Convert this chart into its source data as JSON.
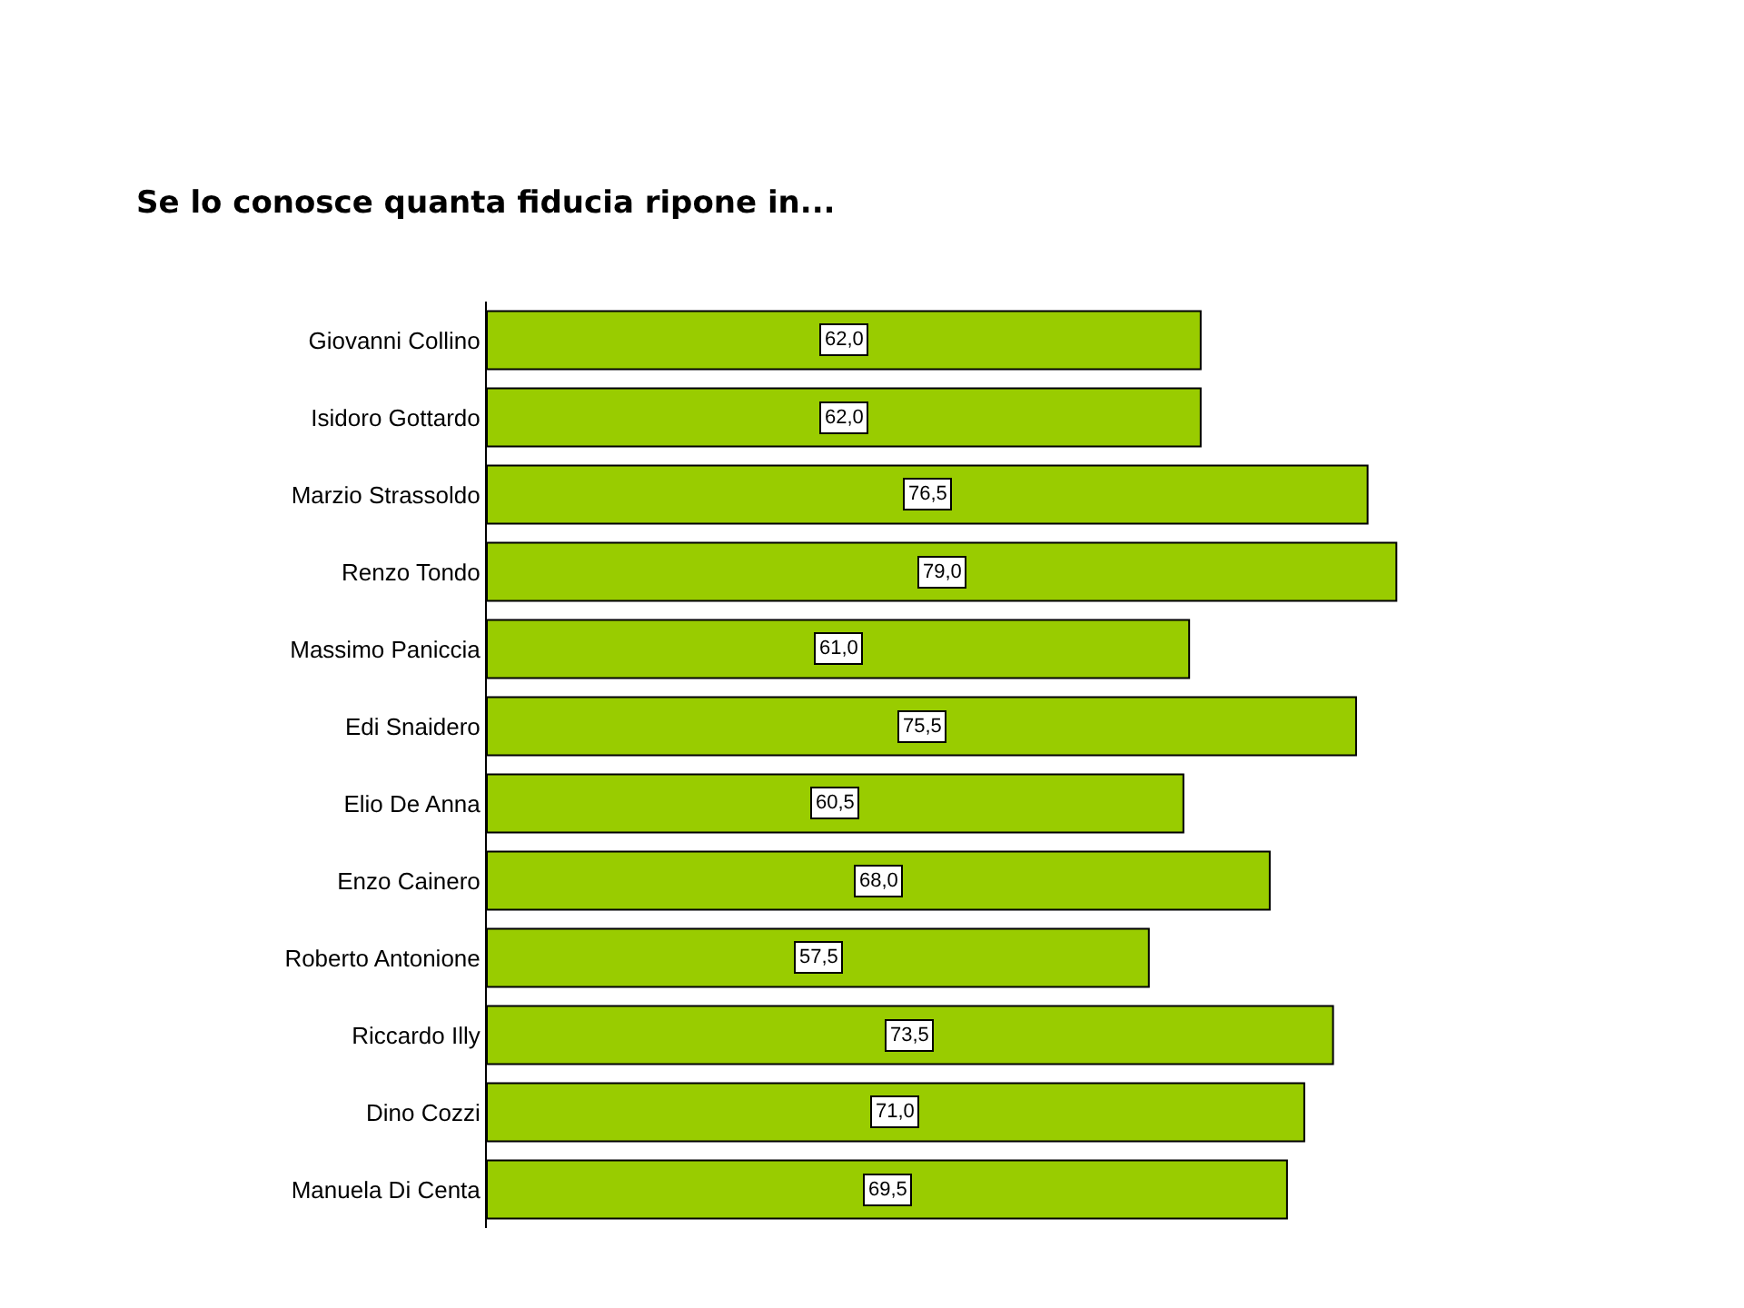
{
  "chart_data": {
    "type": "bar",
    "orientation": "horizontal",
    "title": "Se lo conosce quanta fiducia ripone in...",
    "categories": [
      "Giovanni Collino",
      "Isidoro Gottardo",
      "Marzio Strassoldo",
      "Renzo Tondo",
      "Massimo Paniccia",
      "Edi Snaidero",
      "Elio De Anna",
      "Enzo Cainero",
      "Roberto Antonione",
      "Riccardo Illy",
      "Dino Cozzi",
      "Manuela Di Centa"
    ],
    "values": [
      62.0,
      62.0,
      76.5,
      79.0,
      61.0,
      75.5,
      60.5,
      68.0,
      57.5,
      73.5,
      71.0,
      69.5
    ],
    "value_labels": [
      "62,0",
      "62,0",
      "76,5",
      "79,0",
      "61,0",
      "75,5",
      "60,5",
      "68,0",
      "57,5",
      "73,5",
      "71,0",
      "69,5"
    ],
    "color": "#99cc00",
    "tick_labels": "y",
    "legend": false
  }
}
